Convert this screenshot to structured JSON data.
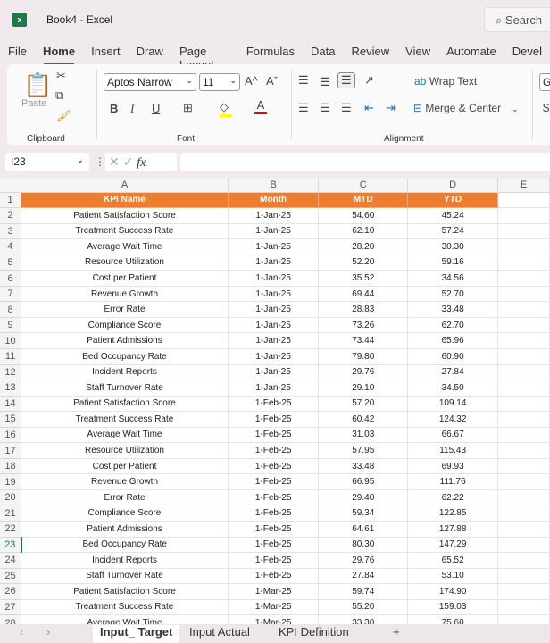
{
  "window": {
    "title": "Book4  -  Excel",
    "app_icon": "excel-icon",
    "search_placeholder": "Search"
  },
  "menu_tabs": [
    "File",
    "Home",
    "Insert",
    "Draw",
    "Page Layout",
    "Formulas",
    "Data",
    "Review",
    "View",
    "Automate",
    "Devel"
  ],
  "active_menu_tab": "Home",
  "ribbon": {
    "clipboard": {
      "label": "Clipboard",
      "paste": "Paste"
    },
    "font": {
      "label": "Font",
      "font_name": "Aptos Narrow",
      "font_size": "11",
      "bold": "B",
      "italic": "I",
      "underline": "U",
      "grow": "A^",
      "shrink": "Aˇ",
      "fill_color": "#ffff00",
      "font_color": "#e00000"
    },
    "alignment": {
      "label": "Alignment",
      "wrap_text": "Wrap Text",
      "merge_center": "Merge & Center"
    },
    "number": {
      "format_partial": "Ge",
      "currency": "$"
    }
  },
  "formula_bar": {
    "name_box": "I23",
    "fx": "fx",
    "value": ""
  },
  "grid": {
    "columns": [
      "A",
      "B",
      "C",
      "D",
      "E"
    ],
    "header_row": [
      "KPI Name",
      "Month",
      "MTD",
      "YTD"
    ],
    "header_color": "#ed7d31",
    "selected_row": "23",
    "rows": [
      [
        "2",
        "Patient Satisfaction Score",
        "1-Jan-25",
        "54.60",
        "45.24"
      ],
      [
        "3",
        "Treatment Success Rate",
        "1-Jan-25",
        "62.10",
        "57.24"
      ],
      [
        "4",
        "Average Wait Time",
        "1-Jan-25",
        "28.20",
        "30.30"
      ],
      [
        "5",
        "Resource Utilization",
        "1-Jan-25",
        "52.20",
        "59.16"
      ],
      [
        "6",
        "Cost per Patient",
        "1-Jan-25",
        "35.52",
        "34.56"
      ],
      [
        "7",
        "Revenue Growth",
        "1-Jan-25",
        "69.44",
        "52.70"
      ],
      [
        "8",
        "Error Rate",
        "1-Jan-25",
        "28.83",
        "33.48"
      ],
      [
        "9",
        "Compliance Score",
        "1-Jan-25",
        "73.26",
        "62.70"
      ],
      [
        "10",
        "Patient Admissions",
        "1-Jan-25",
        "73.44",
        "65.96"
      ],
      [
        "11",
        "Bed Occupancy Rate",
        "1-Jan-25",
        "79.80",
        "60.90"
      ],
      [
        "12",
        "Incident Reports",
        "1-Jan-25",
        "29.76",
        "27.84"
      ],
      [
        "13",
        "Staff Turnover Rate",
        "1-Jan-25",
        "29.10",
        "34.50"
      ],
      [
        "14",
        "Patient Satisfaction Score",
        "1-Feb-25",
        "57.20",
        "109.14"
      ],
      [
        "15",
        "Treatment Success Rate",
        "1-Feb-25",
        "60.42",
        "124.32"
      ],
      [
        "16",
        "Average Wait Time",
        "1-Feb-25",
        "31.03",
        "66.67"
      ],
      [
        "17",
        "Resource Utilization",
        "1-Feb-25",
        "57.95",
        "115.43"
      ],
      [
        "18",
        "Cost per Patient",
        "1-Feb-25",
        "33.48",
        "69.93"
      ],
      [
        "19",
        "Revenue Growth",
        "1-Feb-25",
        "66.95",
        "111.76"
      ],
      [
        "20",
        "Error Rate",
        "1-Feb-25",
        "29.40",
        "62.22"
      ],
      [
        "21",
        "Compliance Score",
        "1-Feb-25",
        "59.34",
        "122.85"
      ],
      [
        "22",
        "Patient Admissions",
        "1-Feb-25",
        "64.61",
        "127.88"
      ],
      [
        "23",
        "Bed Occupancy Rate",
        "1-Feb-25",
        "80.30",
        "147.29"
      ],
      [
        "24",
        "Incident Reports",
        "1-Feb-25",
        "29.76",
        "65.52"
      ],
      [
        "25",
        "Staff Turnover Rate",
        "1-Feb-25",
        "27.84",
        "53.10"
      ],
      [
        "26",
        "Patient Satisfaction Score",
        "1-Mar-25",
        "59.74",
        "174.90"
      ],
      [
        "27",
        "Treatment Success Rate",
        "1-Mar-25",
        "55.20",
        "159.03"
      ],
      [
        "28",
        "Average Wait Time",
        "1-Mar-25",
        "33.30",
        "75.60"
      ]
    ]
  },
  "sheet_tabs": [
    "Input_ Target",
    "Input  Actual",
    "KPI Definition"
  ],
  "active_sheet": "Input_ Target",
  "add_sheet": "+"
}
